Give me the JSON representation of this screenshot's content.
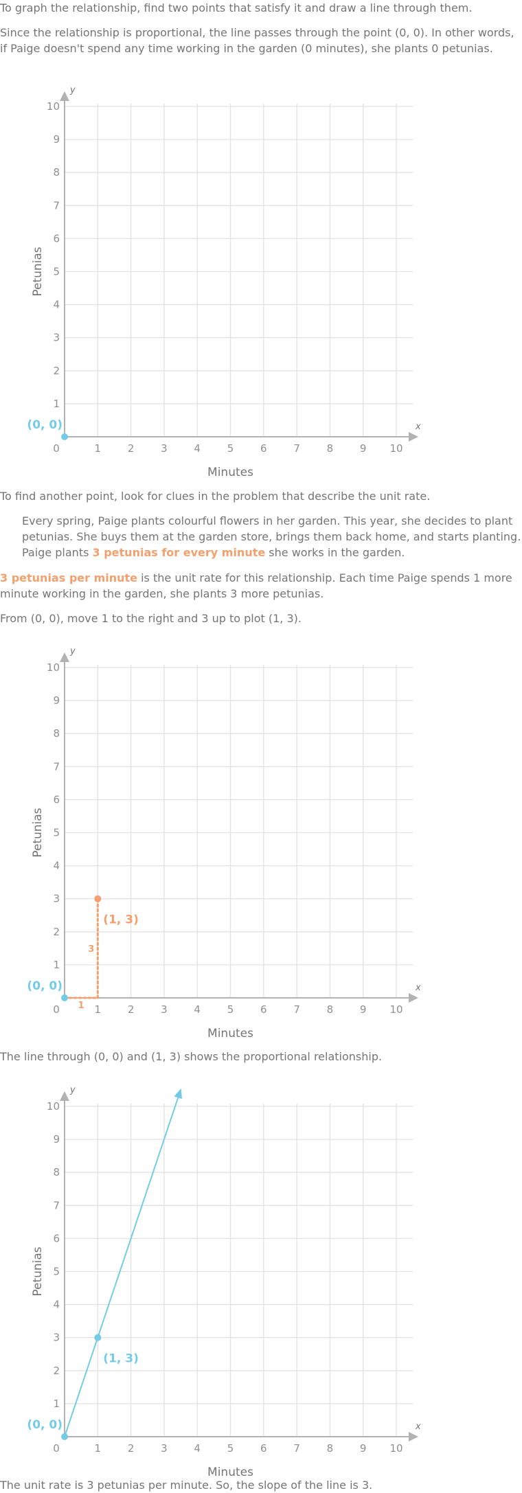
{
  "text": {
    "intro": "To graph the relationship, find two points that satisfy it and draw a line through them.",
    "proportional": "Since the relationship is proportional, the line passes through the point (0, 0). In other words, if Paige doesn't spend any time working in the garden (0 minutes), she plants 0 petunias.",
    "clue": "To find another point, look for clues in the problem that describe the unit rate.",
    "quote_before": "Every spring, Paige plants colourful flowers in her garden. This year, she decides to plant petunias. She buys them at the garden store, brings them back home, and starts planting. Paige plants ",
    "quote_highlight": "3 petunias for every minute",
    "quote_after": " she works in the garden.",
    "unit_rate_highlight": "3 petunias per minute",
    "unit_rate_after": " is the unit rate for this relationship. Each time Paige spends 1 more minute working in the garden, she plants 3 more petunias.",
    "move": "From (0, 0), move 1 to the right and 3 up to plot (1, 3).",
    "line_through": "The line through (0, 0) and (1, 3) shows the proportional relationship.",
    "conclusion": "The unit rate is 3 petunias per minute. So, the slope of the line is 3."
  },
  "colors": {
    "blue": "#74cbe8",
    "orange": "#f4a06e",
    "grid": "#e2e2e2",
    "axis": "#b2b2b2",
    "text": "#757575"
  },
  "chart_data": [
    {
      "type": "line",
      "xlabel": "Minutes",
      "ylabel": "Petunias",
      "x_axis_letter": "x",
      "y_axis_letter": "y",
      "xlim": [
        0,
        10
      ],
      "ylim": [
        0,
        10
      ],
      "x_ticks": [
        "0",
        "1",
        "2",
        "3",
        "4",
        "5",
        "6",
        "7",
        "8",
        "9",
        "10"
      ],
      "y_ticks": [
        "1",
        "2",
        "3",
        "4",
        "5",
        "6",
        "7",
        "8",
        "9",
        "10"
      ],
      "grid": true,
      "points": [
        {
          "x": 0,
          "y": 0,
          "label": "(0, 0)",
          "color": "#74cbe8"
        }
      ]
    },
    {
      "type": "line",
      "xlabel": "Minutes",
      "ylabel": "Petunias",
      "x_axis_letter": "x",
      "y_axis_letter": "y",
      "xlim": [
        0,
        10
      ],
      "ylim": [
        0,
        10
      ],
      "x_ticks": [
        "0",
        "1",
        "2",
        "3",
        "4",
        "5",
        "6",
        "7",
        "8",
        "9",
        "10"
      ],
      "y_ticks": [
        "1",
        "2",
        "3",
        "4",
        "5",
        "6",
        "7",
        "8",
        "9",
        "10"
      ],
      "grid": true,
      "points": [
        {
          "x": 0,
          "y": 0,
          "label": "(0, 0)",
          "color": "#74cbe8"
        },
        {
          "x": 1,
          "y": 3,
          "label": "(1, 3)",
          "color": "#f4a06e"
        }
      ],
      "run": {
        "from": [
          0,
          0
        ],
        "to": [
          1,
          0
        ],
        "label": "1"
      },
      "rise": {
        "from": [
          1,
          0
        ],
        "to": [
          1,
          3
        ],
        "label": "3"
      }
    },
    {
      "type": "line",
      "xlabel": "Minutes",
      "ylabel": "Petunias",
      "x_axis_letter": "x",
      "y_axis_letter": "y",
      "xlim": [
        0,
        10
      ],
      "ylim": [
        0,
        10
      ],
      "x_ticks": [
        "0",
        "1",
        "2",
        "3",
        "4",
        "5",
        "6",
        "7",
        "8",
        "9",
        "10"
      ],
      "y_ticks": [
        "1",
        "2",
        "3",
        "4",
        "5",
        "6",
        "7",
        "8",
        "9",
        "10"
      ],
      "grid": true,
      "points": [
        {
          "x": 0,
          "y": 0,
          "label": "(0, 0)",
          "color": "#74cbe8"
        },
        {
          "x": 1,
          "y": 3,
          "label": "(1, 3)",
          "color": "#74cbe8"
        }
      ],
      "line": {
        "slope": 3,
        "intercept": 0,
        "x_end": 3.5,
        "color": "#74cbe8"
      }
    }
  ]
}
